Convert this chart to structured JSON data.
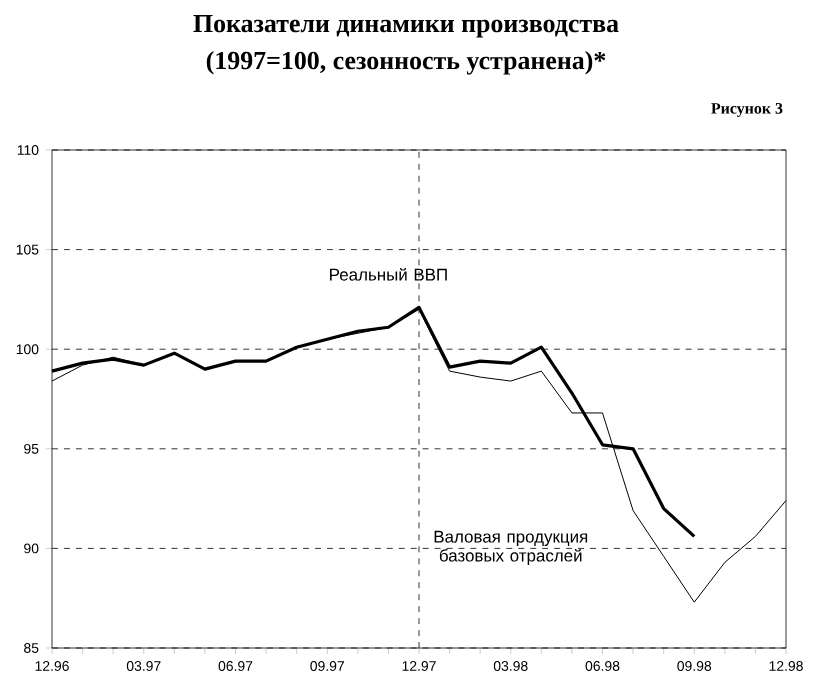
{
  "chart_data": {
    "type": "line",
    "title": "Показатели динамики производства",
    "subtitle": "(1997=100, сезонность устранена)*",
    "annotations": [
      "Рисунок 3"
    ],
    "categories": [
      "12.96",
      null,
      null,
      "03.97",
      null,
      null,
      "06.97",
      null,
      null,
      "09.97",
      null,
      null,
      "12.97",
      null,
      null,
      "03.98",
      null,
      null,
      "06.98",
      null,
      null,
      "09.98",
      null,
      null,
      "12.98"
    ],
    "series": [
      {
        "name": "Реальный ВВП",
        "color": "#000000",
        "values": [
          98.9,
          99.3,
          99.5,
          99.2,
          99.8,
          99.0,
          99.4,
          99.4,
          100.1,
          100.5,
          100.9,
          101.1,
          102.1,
          99.1,
          99.4,
          99.3,
          100.1,
          97.8,
          95.2,
          95.0,
          92.0,
          90.6,
          null,
          null,
          null
        ]
      },
      {
        "name": "Валовая продукция базовых отраслей",
        "color": "#000000",
        "values": [
          98.4,
          99.2,
          99.6,
          99.2,
          99.8,
          99.0,
          99.4,
          99.4,
          100.1,
          100.5,
          100.8,
          101.1,
          102.0,
          98.9,
          98.6,
          98.4,
          98.9,
          96.8,
          96.8,
          91.9,
          89.6,
          87.3,
          89.3,
          90.6,
          92.4
        ]
      }
    ],
    "ylim": [
      85,
      110
    ],
    "yticks": [
      85,
      90,
      95,
      100,
      105,
      110
    ],
    "grid": "y",
    "marker": "none",
    "line_style": "solid",
    "ref_lines": [
      {
        "axis": "x",
        "value": "12.97",
        "line_style": "dashed",
        "color": "#000000"
      }
    ]
  }
}
